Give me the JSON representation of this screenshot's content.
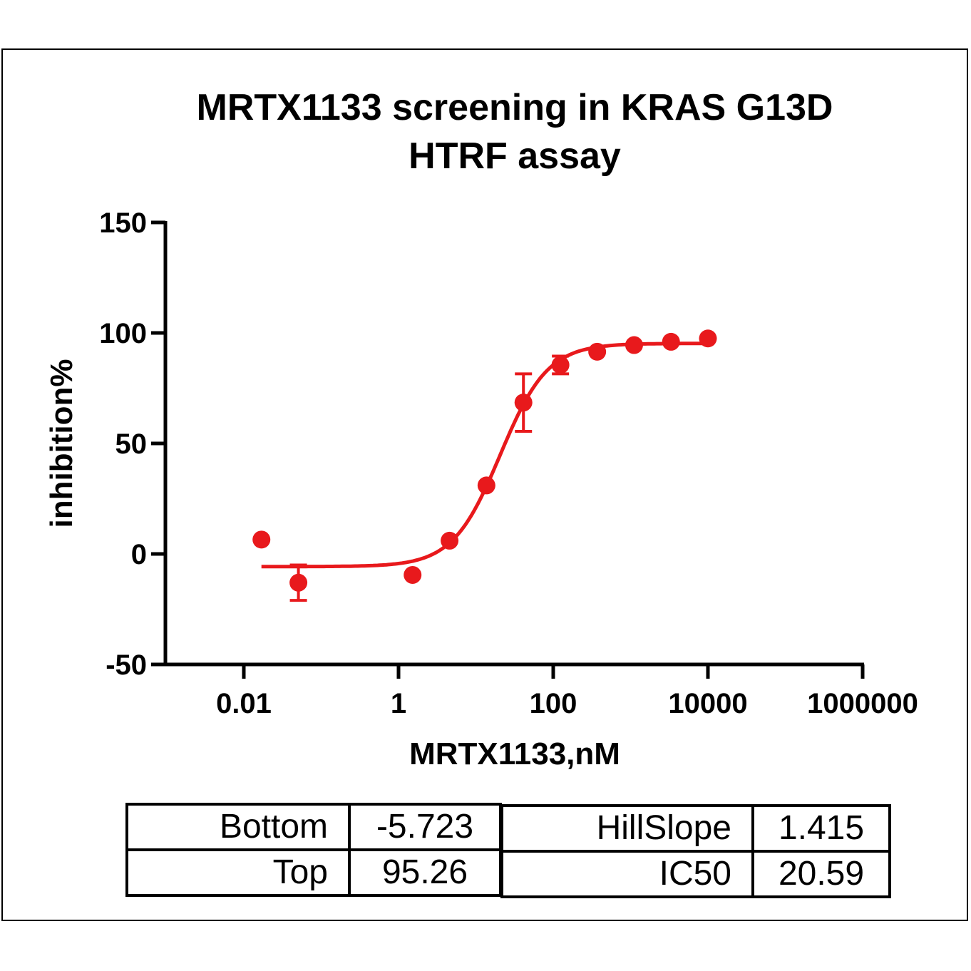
{
  "chart_data": {
    "type": "scatter",
    "title": "MRTX1133 screening in KRAS G13D",
    "title_line2": "HTRF assay",
    "xlabel": "MRTX1133,nM",
    "ylabel": "inhibition%",
    "x_scale": "log",
    "xlim": [
      0.005,
      1000000
    ],
    "ylim": [
      -50,
      150
    ],
    "x_ticks": [
      0.01,
      1,
      100,
      10000,
      1000000
    ],
    "x_tick_labels": [
      "0.01",
      "1",
      "100",
      "10000",
      "1000000"
    ],
    "y_ticks": [
      -50,
      0,
      50,
      100,
      150
    ],
    "y_tick_labels": [
      "-50",
      "0",
      "50",
      "100",
      "150"
    ],
    "grid": false,
    "color": "#e8191c",
    "series": [
      {
        "x": [
          0.0169,
          0.0508,
          1.52,
          4.57,
          13.7,
          41.2,
          124,
          370,
          1111,
          3333,
          10000
        ],
        "y": [
          6.5,
          -13,
          -9.5,
          6,
          31,
          68.5,
          85.5,
          91.5,
          94.5,
          96,
          97.5
        ],
        "error": [
          0,
          8,
          0,
          0,
          0,
          13,
          4,
          0,
          0,
          0,
          0
        ]
      }
    ],
    "fit": {
      "model": "four-parameter logistic",
      "bottom": -5.723,
      "top": 95.26,
      "hillslope": 1.415,
      "ic50": 20.59,
      "x_range": [
        0.0169,
        10000
      ]
    }
  },
  "param_table": {
    "rows": [
      [
        "Bottom",
        "-5.723",
        "HillSlope",
        "1.415"
      ],
      [
        "Top",
        "95.26",
        "IC50",
        "20.59"
      ]
    ]
  }
}
